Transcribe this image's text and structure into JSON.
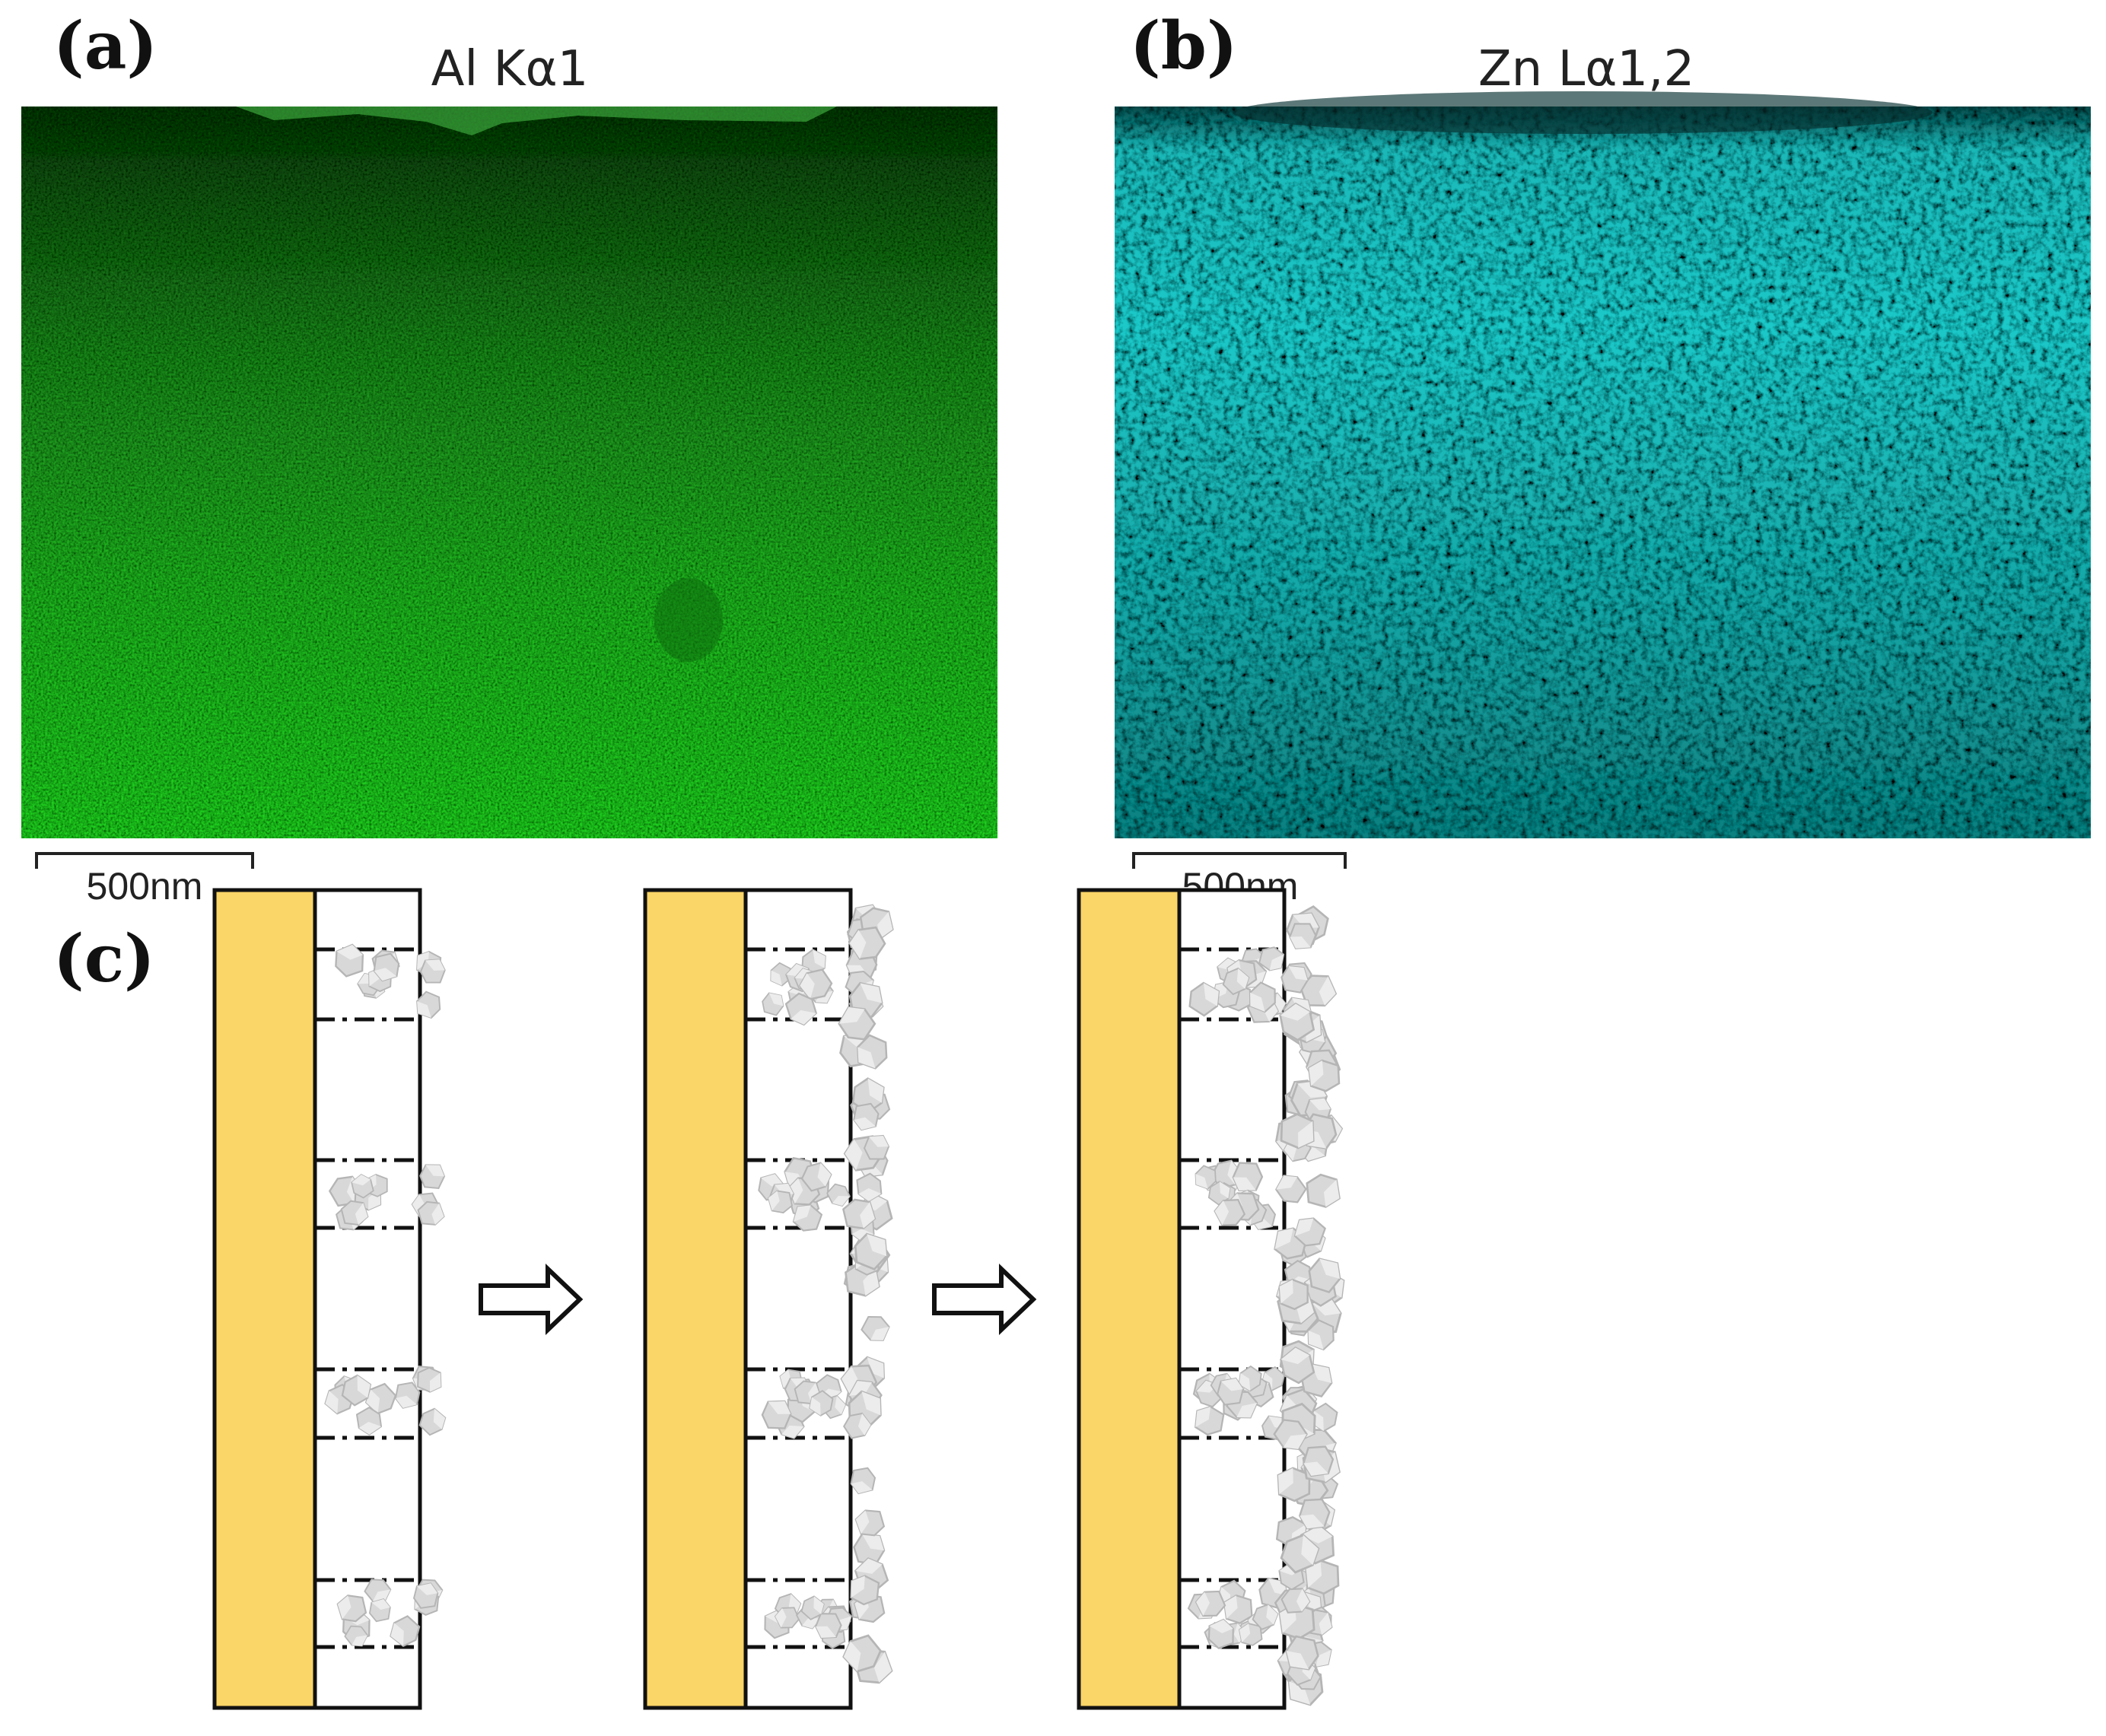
{
  "panels": {
    "a": {
      "label": "(a)",
      "title": "Al Kα1",
      "scale_bar": "500nm",
      "color": "#1ed81e",
      "element": "Al"
    },
    "b": {
      "label": "(b)",
      "title": "Zn Lα1,2",
      "scale_bar": "500nm",
      "color": "#22e6e6",
      "element": "Zn"
    },
    "c": {
      "label": "(c)",
      "stages": 3,
      "substrate_color": "#fad567",
      "particle_color": "#d4d4d4"
    }
  }
}
